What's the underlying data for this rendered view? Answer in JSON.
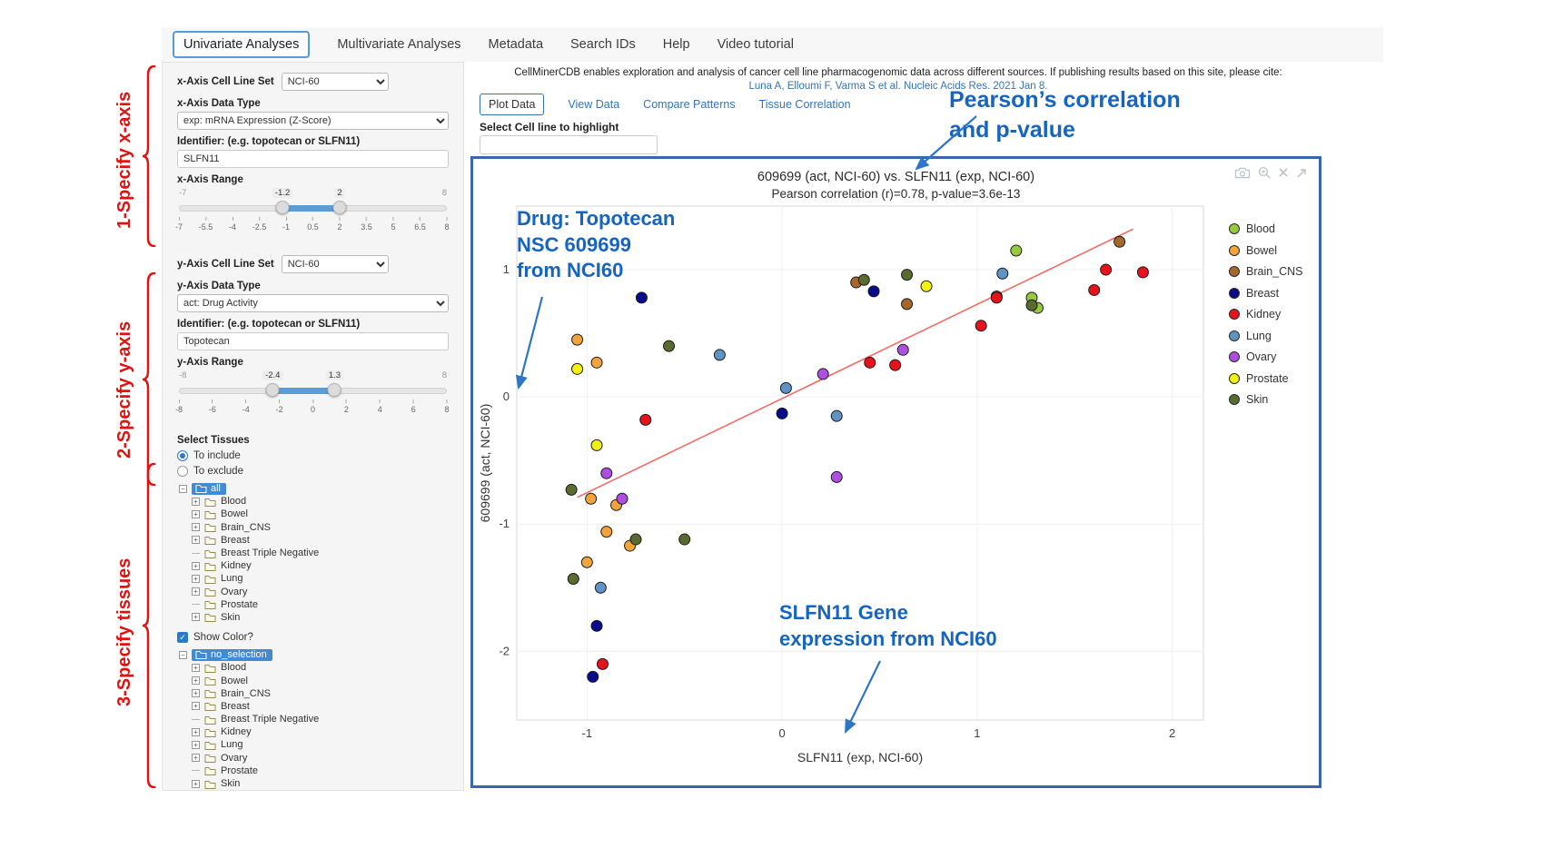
{
  "nav": {
    "tabs": [
      {
        "label": "Univariate Analyses",
        "active": true
      },
      {
        "label": "Multivariate Analyses",
        "active": false
      },
      {
        "label": "Metadata",
        "active": false
      },
      {
        "label": "Search IDs",
        "active": false
      },
      {
        "label": "Help",
        "active": false
      },
      {
        "label": "Video tutorial",
        "active": false
      }
    ]
  },
  "sidebar": {
    "x_cell_line_set_label": "x-Axis Cell Line Set",
    "x_cell_line_set_value": "NCI-60",
    "x_data_type_label": "x-Axis Data Type",
    "x_data_type_value": "exp: mRNA Expression (Z-Score)",
    "x_identifier_label": "Identifier: (e.g. topotecan or SLFN11)",
    "x_identifier_value": "SLFN11",
    "x_range_label": "x-Axis Range",
    "x_slider": {
      "min": -7,
      "max": 8,
      "from": -1.2,
      "to": 2,
      "ticks": [
        "-7",
        "-5.5",
        "-4",
        "-2.5",
        "-1",
        "0.5",
        "2",
        "3.5",
        "5",
        "6.5",
        "8"
      ]
    },
    "y_cell_line_set_label": "y-Axis Cell Line Set",
    "y_cell_line_set_value": "NCI-60",
    "y_data_type_label": "y-Axis Data Type",
    "y_data_type_value": "act: Drug Activity",
    "y_identifier_label": "Identifier: (e.g. topotecan or SLFN11)",
    "y_identifier_value": "Topotecan",
    "y_range_label": "y-Axis Range",
    "y_slider": {
      "min": -8,
      "max": 8,
      "from": -2.4,
      "to": 1.3,
      "ticks": [
        "-8",
        "-6",
        "-4",
        "-2",
        "0",
        "2",
        "4",
        "6",
        "8"
      ]
    },
    "select_tissues_label": "Select Tissues",
    "to_include_label": "To include",
    "to_exclude_label": "To exclude",
    "show_color_label": "Show Color?",
    "tissue_tree": {
      "tree1_root": "all",
      "tree2_root": "no_selection",
      "items": [
        {
          "label": "Blood",
          "expandable": true
        },
        {
          "label": "Bowel",
          "expandable": true
        },
        {
          "label": "Brain_CNS",
          "expandable": true
        },
        {
          "label": "Breast",
          "expandable": true
        },
        {
          "label": "Breast Triple Negative",
          "expandable": false
        },
        {
          "label": "Kidney",
          "expandable": true
        },
        {
          "label": "Lung",
          "expandable": true
        },
        {
          "label": "Ovary",
          "expandable": true
        },
        {
          "label": "Prostate",
          "expandable": false
        },
        {
          "label": "Skin",
          "expandable": true
        }
      ]
    }
  },
  "main": {
    "citation": "CellMinerCDB enables exploration and analysis of cancer cell line pharmacogenomic data across different sources. If publishing results based on this site, please cite:",
    "citation_link": "Luna A, Elloumi F, Varma S et al. Nucleic Acids Res. 2021 Jan 8.",
    "tabs": [
      {
        "label": "Plot Data",
        "active": true
      },
      {
        "label": "View Data",
        "active": false
      },
      {
        "label": "Compare Patterns",
        "active": false
      },
      {
        "label": "Tissue Correlation",
        "active": false
      }
    ],
    "highlight_label": "Select Cell line to highlight",
    "highlight_value": "",
    "modebar_icons": [
      "camera-icon",
      "zoom-in-icon",
      "close-icon",
      "pan-icon"
    ]
  },
  "annotations": {
    "step1": "1-Specify x-axis",
    "step2": "2-Specify y-axis",
    "step3": "3-Specify tissues",
    "step_color": "#E21212",
    "callout_color": "#1565C0",
    "pearson_lines": [
      "Pearson’s correlation",
      "and p-value"
    ],
    "drug_lines": [
      "Drug: Topotecan",
      "NSC 609699",
      "from NCI60"
    ],
    "gene_lines": [
      "SLFN11 Gene",
      "expression from NCI60"
    ]
  },
  "chart_data": {
    "type": "scatter",
    "title": "609699 (act, NCI-60) vs. SLFN11 (exp, NCI-60)",
    "subtitle": "Pearson correlation (r)=0.78, p-value=3.6e-13",
    "pearson_r": 0.78,
    "p_value": "3.6e-13",
    "xlabel": "SLFN11 (exp, NCI-60)",
    "ylabel": "609699 (act, NCI-60)",
    "xlim": [
      -1.36,
      2.16
    ],
    "ylim": [
      -2.54,
      1.5
    ],
    "xticks": [
      -1,
      0,
      1,
      2
    ],
    "yticks": [
      -2,
      -1,
      0,
      1
    ],
    "grid": true,
    "legend_position": "right",
    "regression_line": {
      "x1": -1.05,
      "y1": -0.79,
      "x2": 1.8,
      "y2": 1.32,
      "color": "#F26B64"
    },
    "series": [
      {
        "name": "Blood",
        "color": "#96CA3E",
        "points": [
          [
            1.2,
            1.15
          ],
          [
            1.28,
            0.78
          ],
          [
            1.31,
            0.7
          ]
        ]
      },
      {
        "name": "Bowel",
        "color": "#F2A33A",
        "points": [
          [
            -1.05,
            0.45
          ],
          [
            -0.95,
            0.27
          ],
          [
            -0.98,
            -0.8
          ],
          [
            -0.85,
            -0.85
          ],
          [
            -0.9,
            -1.06
          ],
          [
            -0.78,
            -1.17
          ],
          [
            -1.0,
            -1.3
          ]
        ]
      },
      {
        "name": "Brain_CNS",
        "color": "#A5682B",
        "points": [
          [
            0.38,
            0.9
          ],
          [
            0.64,
            0.73
          ],
          [
            1.1,
            0.79
          ],
          [
            1.73,
            1.22
          ]
        ]
      },
      {
        "name": "Breast",
        "color": "#0A0A8C",
        "points": [
          [
            -0.72,
            0.78
          ],
          [
            0.47,
            0.83
          ],
          [
            0.0,
            -0.13
          ],
          [
            -0.95,
            -1.8
          ],
          [
            -0.97,
            -2.2
          ]
        ]
      },
      {
        "name": "Kidney",
        "color": "#E8121C",
        "points": [
          [
            -0.7,
            -0.18
          ],
          [
            0.45,
            0.27
          ],
          [
            0.58,
            0.25
          ],
          [
            1.02,
            0.56
          ],
          [
            1.1,
            0.78
          ],
          [
            1.6,
            0.84
          ],
          [
            1.66,
            1.0
          ],
          [
            1.85,
            0.98
          ],
          [
            -0.92,
            -2.1
          ]
        ]
      },
      {
        "name": "Lung",
        "color": "#5E93C4",
        "points": [
          [
            -0.32,
            0.33
          ],
          [
            0.02,
            0.07
          ],
          [
            0.28,
            -0.15
          ],
          [
            1.13,
            0.97
          ],
          [
            -0.93,
            -1.5
          ]
        ]
      },
      {
        "name": "Ovary",
        "color": "#AE4FE0",
        "points": [
          [
            0.21,
            0.18
          ],
          [
            0.62,
            0.37
          ],
          [
            0.28,
            -0.63
          ],
          [
            -0.82,
            -0.8
          ],
          [
            -0.9,
            -0.6
          ]
        ]
      },
      {
        "name": "Prostate",
        "color": "#F2F20C",
        "points": [
          [
            -1.05,
            0.22
          ],
          [
            -0.95,
            -0.38
          ],
          [
            0.74,
            0.87
          ]
        ]
      },
      {
        "name": "Skin",
        "color": "#5A6B2F",
        "points": [
          [
            0.42,
            0.92
          ],
          [
            0.64,
            0.96
          ],
          [
            1.28,
            0.72
          ],
          [
            -0.58,
            0.4
          ],
          [
            -1.08,
            -0.73
          ],
          [
            -0.75,
            -1.12
          ],
          [
            -0.5,
            -1.12
          ],
          [
            -1.07,
            -1.43
          ]
        ]
      }
    ]
  }
}
